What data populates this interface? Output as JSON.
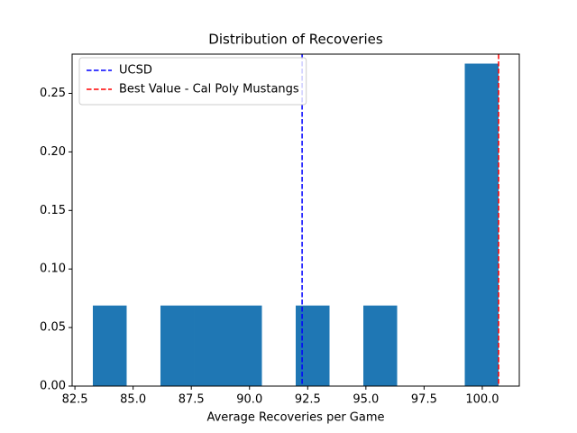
{
  "chart_data": {
    "type": "histogram",
    "title": "Distribution of Recoveries",
    "xlabel": "Average Recoveries per Game",
    "bins": [
      83.27,
      84.7225,
      86.175,
      87.6275,
      89.08,
      90.5325,
      91.985,
      93.4375,
      94.89,
      96.3425,
      97.795,
      99.2475,
      100.7
    ],
    "values": [
      0.0688,
      0,
      0.0688,
      0.0688,
      0.0688,
      0,
      0.0688,
      0,
      0.0688,
      0,
      0,
      0.2754
    ],
    "color": "#1f77b4",
    "xlim": [
      82.38,
      101.59
    ],
    "xticks": [
      82.5,
      {
        "value": 85,
        "label": "85.0"
      },
      87.5,
      {
        "value": 90,
        "label": "90.0"
      },
      92.5,
      {
        "value": 95,
        "label": "95.0"
      },
      97.5,
      {
        "value": 100,
        "label": "100.0"
      }
    ],
    "ylim": [
      0,
      0.2835
    ],
    "yticks": [
      {
        "value": 0,
        "label": "0.00"
      },
      {
        "value": 0.05,
        "label": "0.05"
      },
      {
        "value": 0.1,
        "label": "0.10"
      },
      {
        "value": 0.15,
        "label": "0.15"
      },
      {
        "value": 0.2,
        "label": "0.20"
      },
      {
        "value": 0.25,
        "label": "0.25"
      }
    ],
    "vlines": [
      {
        "name": "UCSD",
        "color": "#0000ff",
        "x": 92.26
      },
      {
        "name": "Best Value - Cal Poly Mustangs",
        "color": "#ff0000",
        "x": 100.7
      }
    ],
    "legend": "upper left"
  }
}
